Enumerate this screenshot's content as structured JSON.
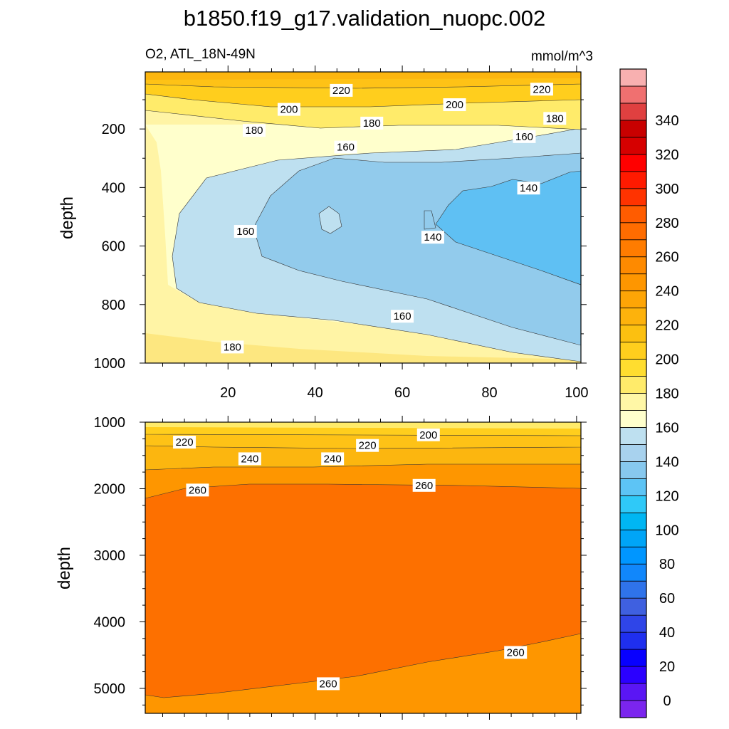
{
  "figure": {
    "title": "b1850.f19_g17.validation_nuopc.002",
    "left_subtitle": "O2, ATL_18N-49N",
    "units": "mmol/m^3"
  },
  "chart_data": [
    {
      "type": "contour",
      "panel": "upper",
      "variable": "O2",
      "region": "ATL_18N-49N",
      "xlabel": "",
      "ylabel": "depth",
      "xlim": [
        1,
        101
      ],
      "ylim": [
        1000,
        5
      ],
      "x_ticks": [
        20,
        40,
        60,
        80,
        100
      ],
      "y_ticks": [
        200,
        400,
        600,
        800,
        1000
      ],
      "contour_labels": [
        {
          "text": "220",
          "x": 46,
          "y": 68
        },
        {
          "text": "220",
          "x": 92,
          "y": 64
        },
        {
          "text": "200",
          "x": 34,
          "y": 133
        },
        {
          "text": "200",
          "x": 72,
          "y": 117
        },
        {
          "text": "180",
          "x": 26,
          "y": 205
        },
        {
          "text": "180",
          "x": 53,
          "y": 180
        },
        {
          "text": "180",
          "x": 95,
          "y": 164
        },
        {
          "text": "160",
          "x": 47,
          "y": 262
        },
        {
          "text": "160",
          "x": 88,
          "y": 226
        },
        {
          "text": "160",
          "x": 24,
          "y": 550
        },
        {
          "text": "140",
          "x": 67,
          "y": 570
        },
        {
          "text": "140",
          "x": 89,
          "y": 402
        },
        {
          "text": "160",
          "x": 60,
          "y": 840
        },
        {
          "text": "180",
          "x": 21,
          "y": 945
        }
      ]
    },
    {
      "type": "contour",
      "panel": "lower",
      "variable": "O2",
      "xlabel": "",
      "ylabel": "depth",
      "xlim": [
        1,
        101
      ],
      "ylim": [
        5375,
        1000
      ],
      "y_ticks": [
        1000,
        2000,
        3000,
        4000,
        5000
      ],
      "contour_labels": [
        {
          "text": "220",
          "x": 10,
          "y": 1300
        },
        {
          "text": "240",
          "x": 25,
          "y": 1550
        },
        {
          "text": "240",
          "x": 44,
          "y": 1550
        },
        {
          "text": "220",
          "x": 52,
          "y": 1350
        },
        {
          "text": "200",
          "x": 66,
          "y": 1190
        },
        {
          "text": "260",
          "x": 13,
          "y": 2020
        },
        {
          "text": "260",
          "x": 65,
          "y": 1950
        },
        {
          "text": "260",
          "x": 86,
          "y": 4460
        },
        {
          "text": "260",
          "x": 43,
          "y": 4930
        }
      ]
    }
  ],
  "colorbar": {
    "labels": [
      "0",
      "20",
      "40",
      "60",
      "80",
      "100",
      "120",
      "140",
      "160",
      "180",
      "200",
      "220",
      "240",
      "260",
      "280",
      "300",
      "320",
      "340"
    ],
    "min": -10,
    "max": 360,
    "step": 10,
    "colors": [
      "#7b25ee",
      "#5a16f4",
      "#2b00ff",
      "#0800ff",
      "#1f2fef",
      "#2f45e8",
      "#3f60e0",
      "#2f73ea",
      "#1187fb",
      "#0096ff",
      "#00a5f7",
      "#00b6f3",
      "#2fc9f8",
      "#5dc4f5",
      "#87c8ee",
      "#a8d2ee",
      "#bee0f0",
      "#ffffcc",
      "#fff7a6",
      "#ffeb6a",
      "#ffdd2f",
      "#ffce1d",
      "#fcc010",
      "#fdb20c",
      "#fea506",
      "#fe9600",
      "#fe8a00",
      "#ff7c00",
      "#ff6c00",
      "#ff5c00",
      "#ff3300",
      "#ff1a00",
      "#ff0000",
      "#d60000",
      "#c80000",
      "#e04040",
      "#f07070",
      "#f8b0b0"
    ]
  },
  "fills": {
    "c_upper_bg": "#fde780",
    "c_sat": "#fff4a5",
    "c_sat2": "#ffffcc",
    "c_light_blue": "#bee0f0",
    "c_mid_blue": "#92cbec",
    "c_blue": "#5fc0f3",
    "c_o180": "#ffeb6a",
    "c_o200": "#ffce1d",
    "c_o210": "#fec216",
    "c_o220": "#fcb60f",
    "c_lower_bg": "#fd7000",
    "c_lower_top": "#fe9600"
  }
}
